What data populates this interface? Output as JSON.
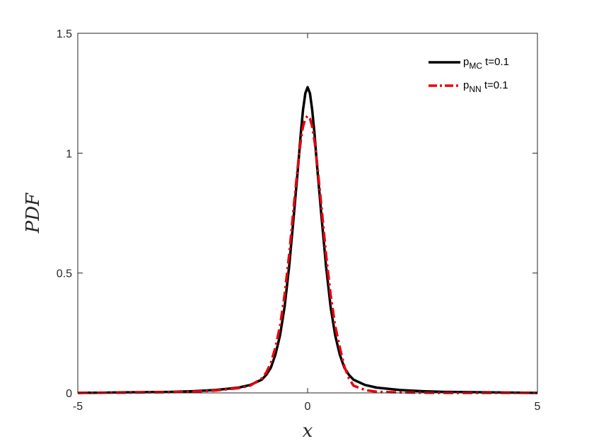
{
  "chart_data": {
    "type": "line",
    "title": "",
    "xlabel": "x",
    "ylabel": "PDF",
    "xlim": [
      -5,
      5
    ],
    "ylim": [
      0,
      1.5
    ],
    "xticks": [
      -5,
      0,
      5
    ],
    "xtick_labels": [
      "-5",
      "0",
      "5"
    ],
    "yticks": [
      0,
      0.5,
      1,
      1.5
    ],
    "ytick_labels": [
      "0",
      "0.5",
      "1",
      "1.5"
    ],
    "grid": false,
    "legend_position": "top-right",
    "series": [
      {
        "name": "p_MC t=0.1",
        "legend_main": "p",
        "legend_sub": "MC",
        "legend_suffix": " t=0.1",
        "color": "#000000",
        "style": "solid",
        "x": [
          -5,
          -4,
          -3,
          -2.5,
          -2,
          -1.5,
          -1.25,
          -1,
          -0.9,
          -0.8,
          -0.7,
          -0.6,
          -0.5,
          -0.4,
          -0.3,
          -0.2,
          -0.15,
          -0.1,
          -0.05,
          0,
          0.05,
          0.1,
          0.15,
          0.2,
          0.3,
          0.4,
          0.5,
          0.6,
          0.7,
          0.8,
          0.9,
          1,
          1.25,
          1.5,
          2,
          2.5,
          3,
          4,
          5
        ],
        "y": [
          0.0,
          0.002,
          0.004,
          0.007,
          0.012,
          0.022,
          0.033,
          0.055,
          0.075,
          0.105,
          0.16,
          0.24,
          0.36,
          0.53,
          0.74,
          0.96,
          1.08,
          1.18,
          1.25,
          1.275,
          1.25,
          1.18,
          1.08,
          0.96,
          0.74,
          0.53,
          0.36,
          0.24,
          0.16,
          0.105,
          0.075,
          0.055,
          0.033,
          0.022,
          0.012,
          0.007,
          0.004,
          0.002,
          0.0
        ]
      },
      {
        "name": "p_NN t=0.1",
        "legend_main": "p",
        "legend_sub": "NN",
        "legend_suffix": " t=0.1",
        "color": "#e8000b",
        "style": "dashdot",
        "x": [
          -5,
          -4,
          -3,
          -2.5,
          -2,
          -1.5,
          -1.25,
          -1,
          -0.9,
          -0.8,
          -0.7,
          -0.6,
          -0.5,
          -0.4,
          -0.3,
          -0.2,
          -0.15,
          -0.1,
          -0.05,
          0,
          0.05,
          0.1,
          0.15,
          0.2,
          0.3,
          0.4,
          0.5,
          0.6,
          0.7,
          0.8,
          0.9,
          1,
          1.25,
          1.5,
          2,
          2.5,
          3,
          4,
          5
        ],
        "y": [
          0.0,
          0.001,
          0.003,
          0.005,
          0.01,
          0.02,
          0.03,
          0.06,
          0.085,
          0.125,
          0.19,
          0.28,
          0.41,
          0.58,
          0.78,
          0.97,
          1.05,
          1.11,
          1.145,
          1.155,
          1.145,
          1.11,
          1.05,
          0.97,
          0.78,
          0.58,
          0.41,
          0.28,
          0.19,
          0.11,
          0.06,
          0.03,
          0.012,
          0.005,
          0.002,
          0.001,
          0.0,
          0.0,
          0.0
        ]
      }
    ]
  }
}
